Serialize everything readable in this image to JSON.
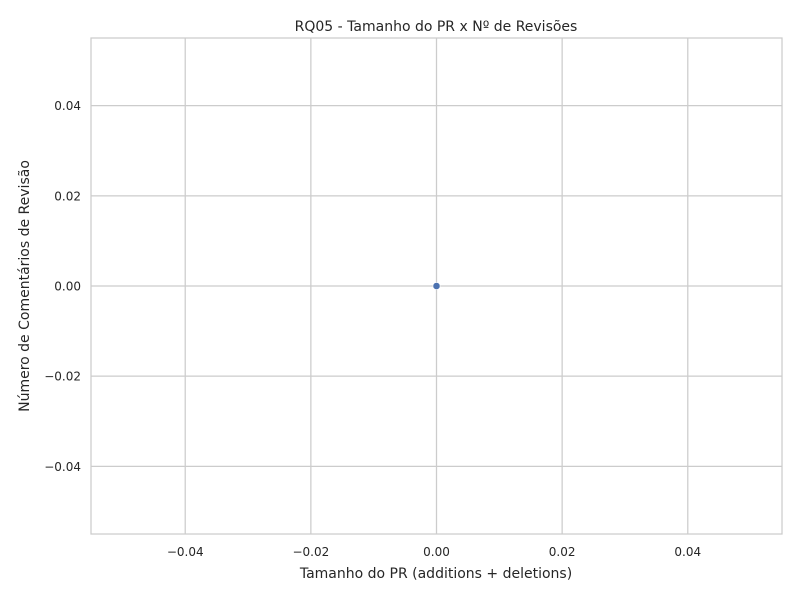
{
  "chart_data": {
    "type": "scatter",
    "title": "RQ05 - Tamanho do PR x Nº de Revisões",
    "xlabel": "Tamanho do PR (additions + deletions)",
    "ylabel": "Número de Comentários de Revisão",
    "xlim": [
      -0.055,
      0.055
    ],
    "ylim": [
      -0.055,
      0.055
    ],
    "xticks": [
      -0.04,
      -0.02,
      0.0,
      0.02,
      0.04
    ],
    "xtick_labels": [
      "−0.04",
      "−0.02",
      "0.00",
      "0.02",
      "0.04"
    ],
    "yticks": [
      0.04,
      0.02,
      0.0,
      -0.02,
      -0.04
    ],
    "ytick_labels": [
      "0.04",
      "0.02",
      "0.00",
      "−0.02",
      "−0.04"
    ],
    "grid": true,
    "points": [
      {
        "x": 0,
        "y": 0
      }
    ],
    "colors": {
      "point": "#4c72b0",
      "grid": "#cccccc",
      "frame": "#cccccc",
      "background": "#ffffff"
    }
  }
}
